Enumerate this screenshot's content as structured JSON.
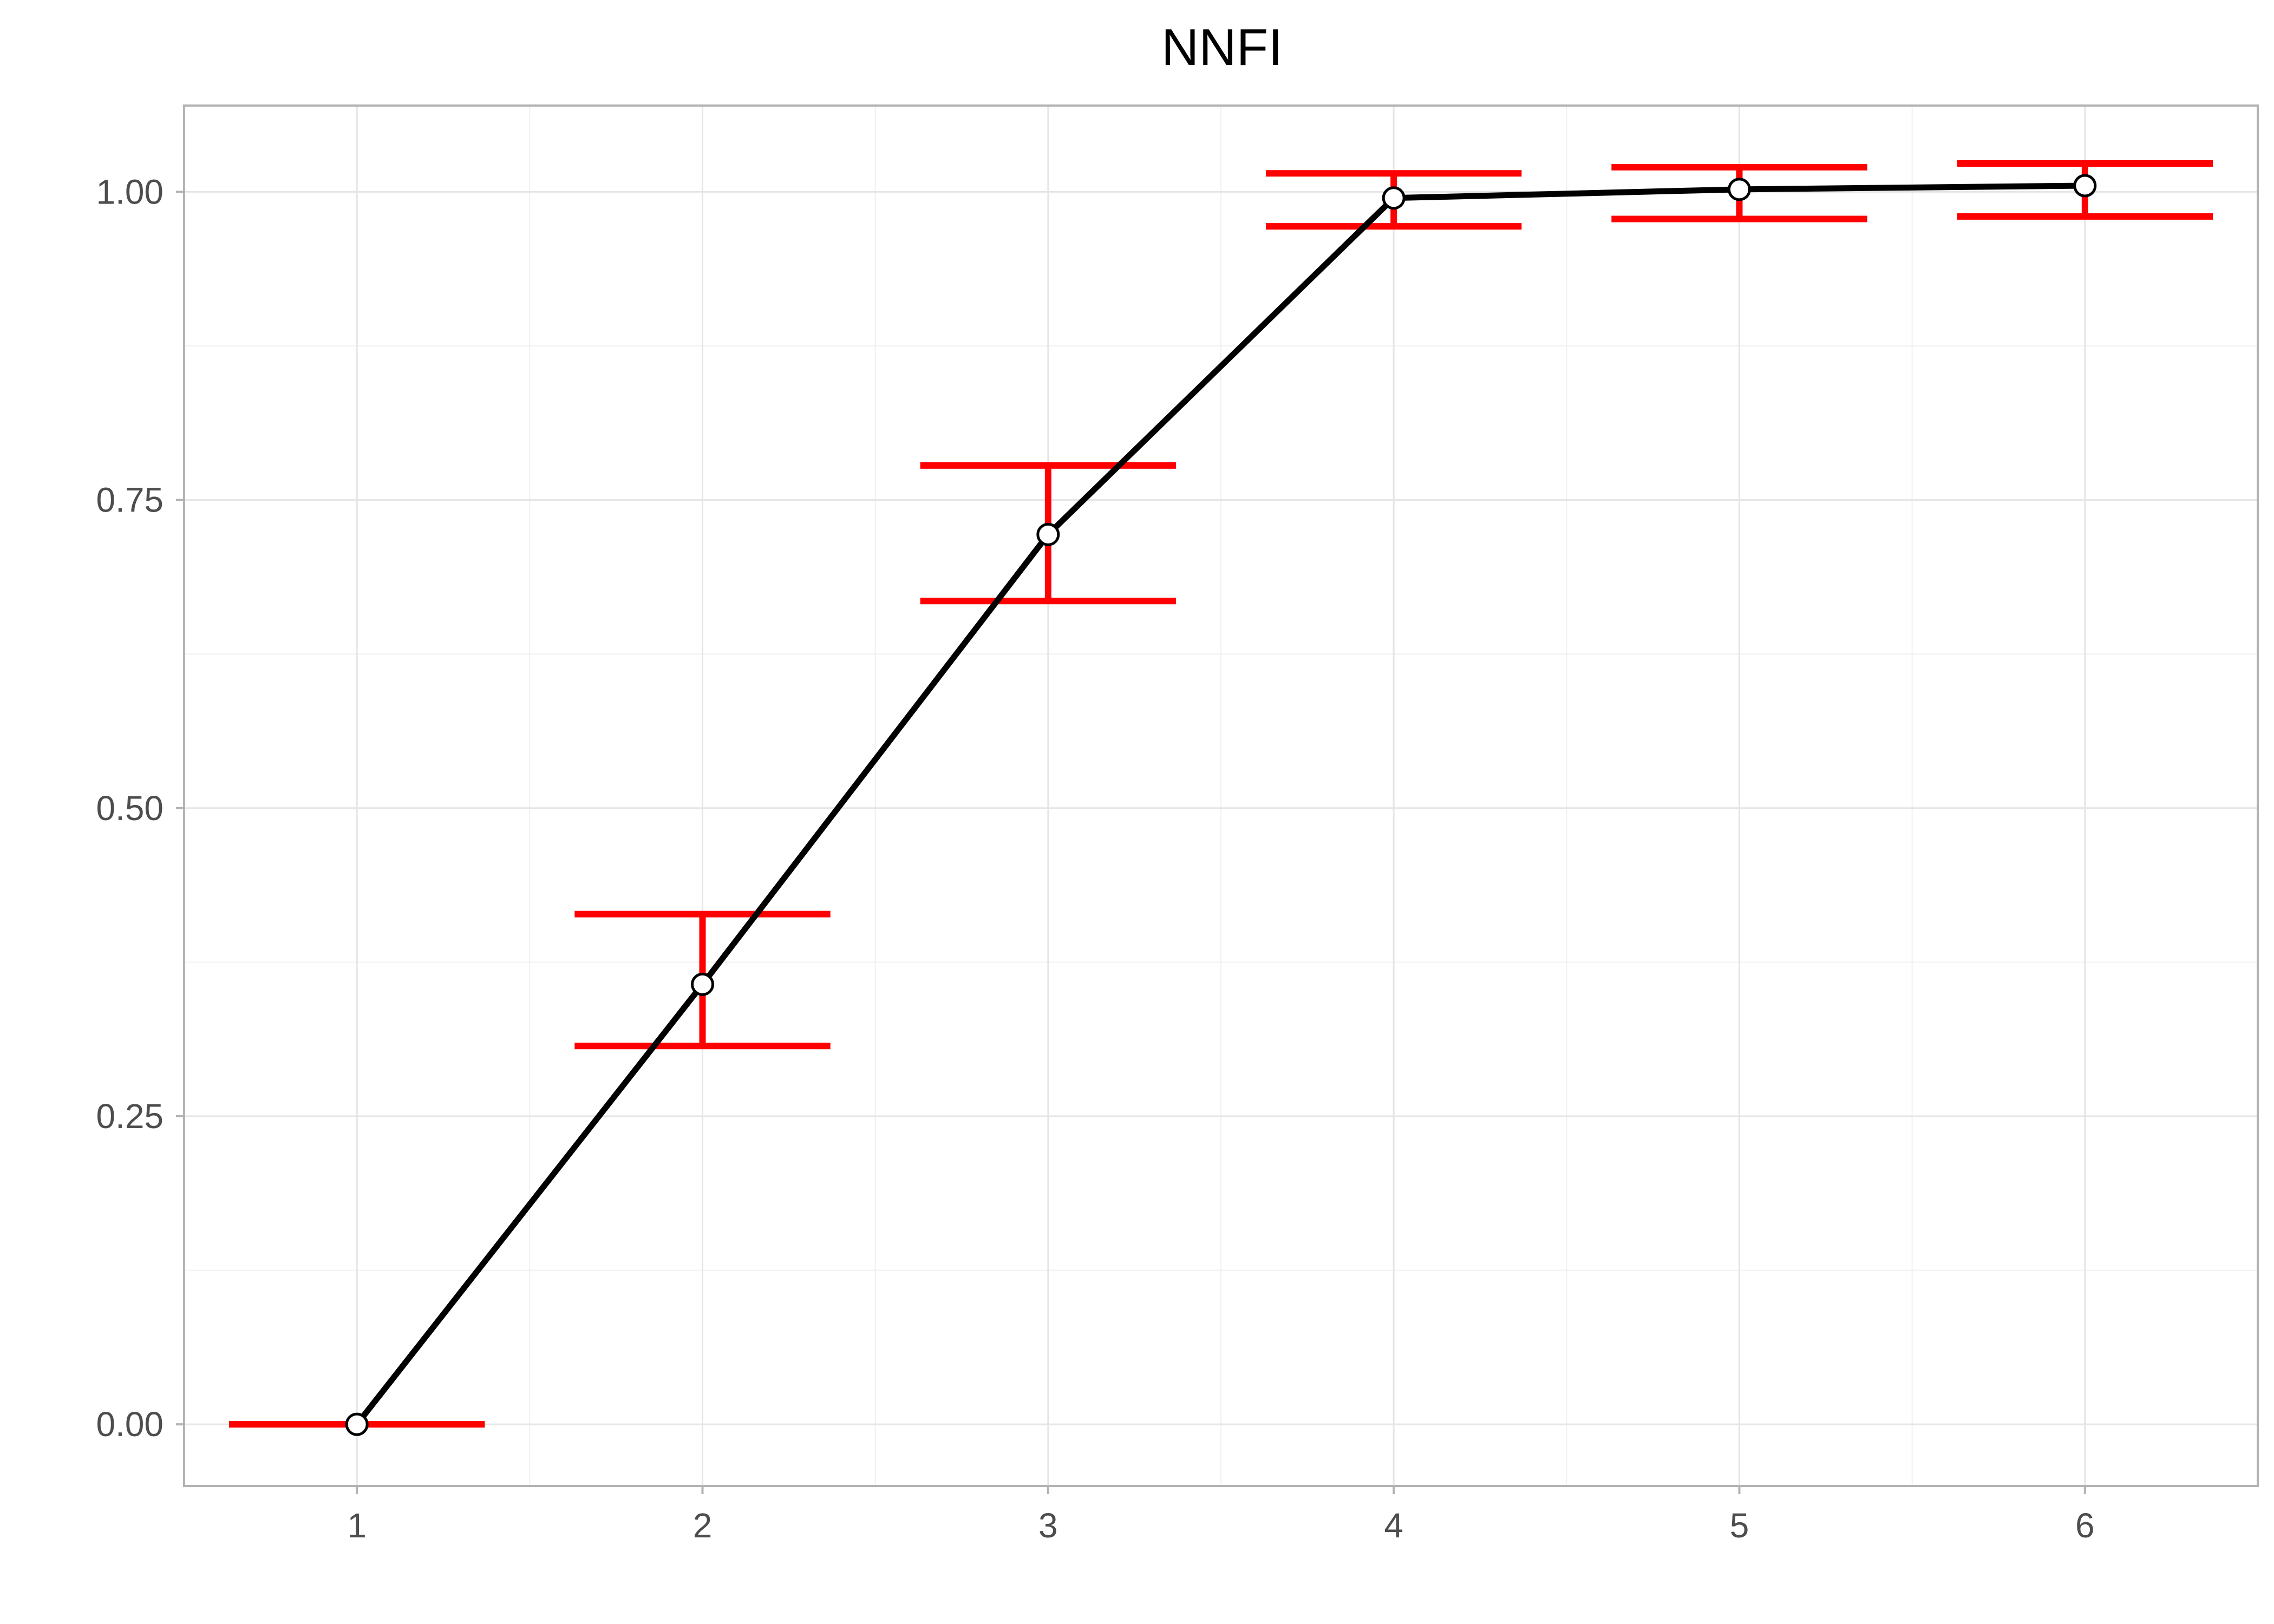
{
  "chart_data": {
    "type": "line",
    "title": "NNFI",
    "xlabel": "",
    "ylabel": "",
    "x": [
      1,
      2,
      3,
      4,
      5,
      6
    ],
    "y": [
      0.0,
      0.357,
      0.722,
      0.995,
      1.002,
      1.005
    ],
    "error_bars": {
      "lower": [
        0.0,
        0.307,
        0.668,
        0.972,
        0.978,
        0.98
      ],
      "upper": [
        0.0,
        0.414,
        0.778,
        1.015,
        1.02,
        1.023
      ],
      "color": "#ff0000"
    },
    "xlim": [
      0.5,
      6.5
    ],
    "ylim": [
      -0.05,
      1.07
    ],
    "x_ticks": [
      "1",
      "2",
      "3",
      "4",
      "5",
      "6"
    ],
    "x_tick_values": [
      1,
      2,
      3,
      4,
      5,
      6
    ],
    "y_ticks": [
      "0.00",
      "0.25",
      "0.50",
      "0.75",
      "1.00"
    ],
    "y_tick_values": [
      0,
      0.25,
      0.5,
      0.75,
      1.0
    ],
    "grid": true,
    "legend": "none",
    "colors": {
      "line": "#000000",
      "marker_fill": "#ffffff",
      "marker_stroke": "#000000",
      "error_bar": "#ff0000",
      "grid": "#e5e5e5",
      "panel_border": "#b3b3b3"
    }
  }
}
